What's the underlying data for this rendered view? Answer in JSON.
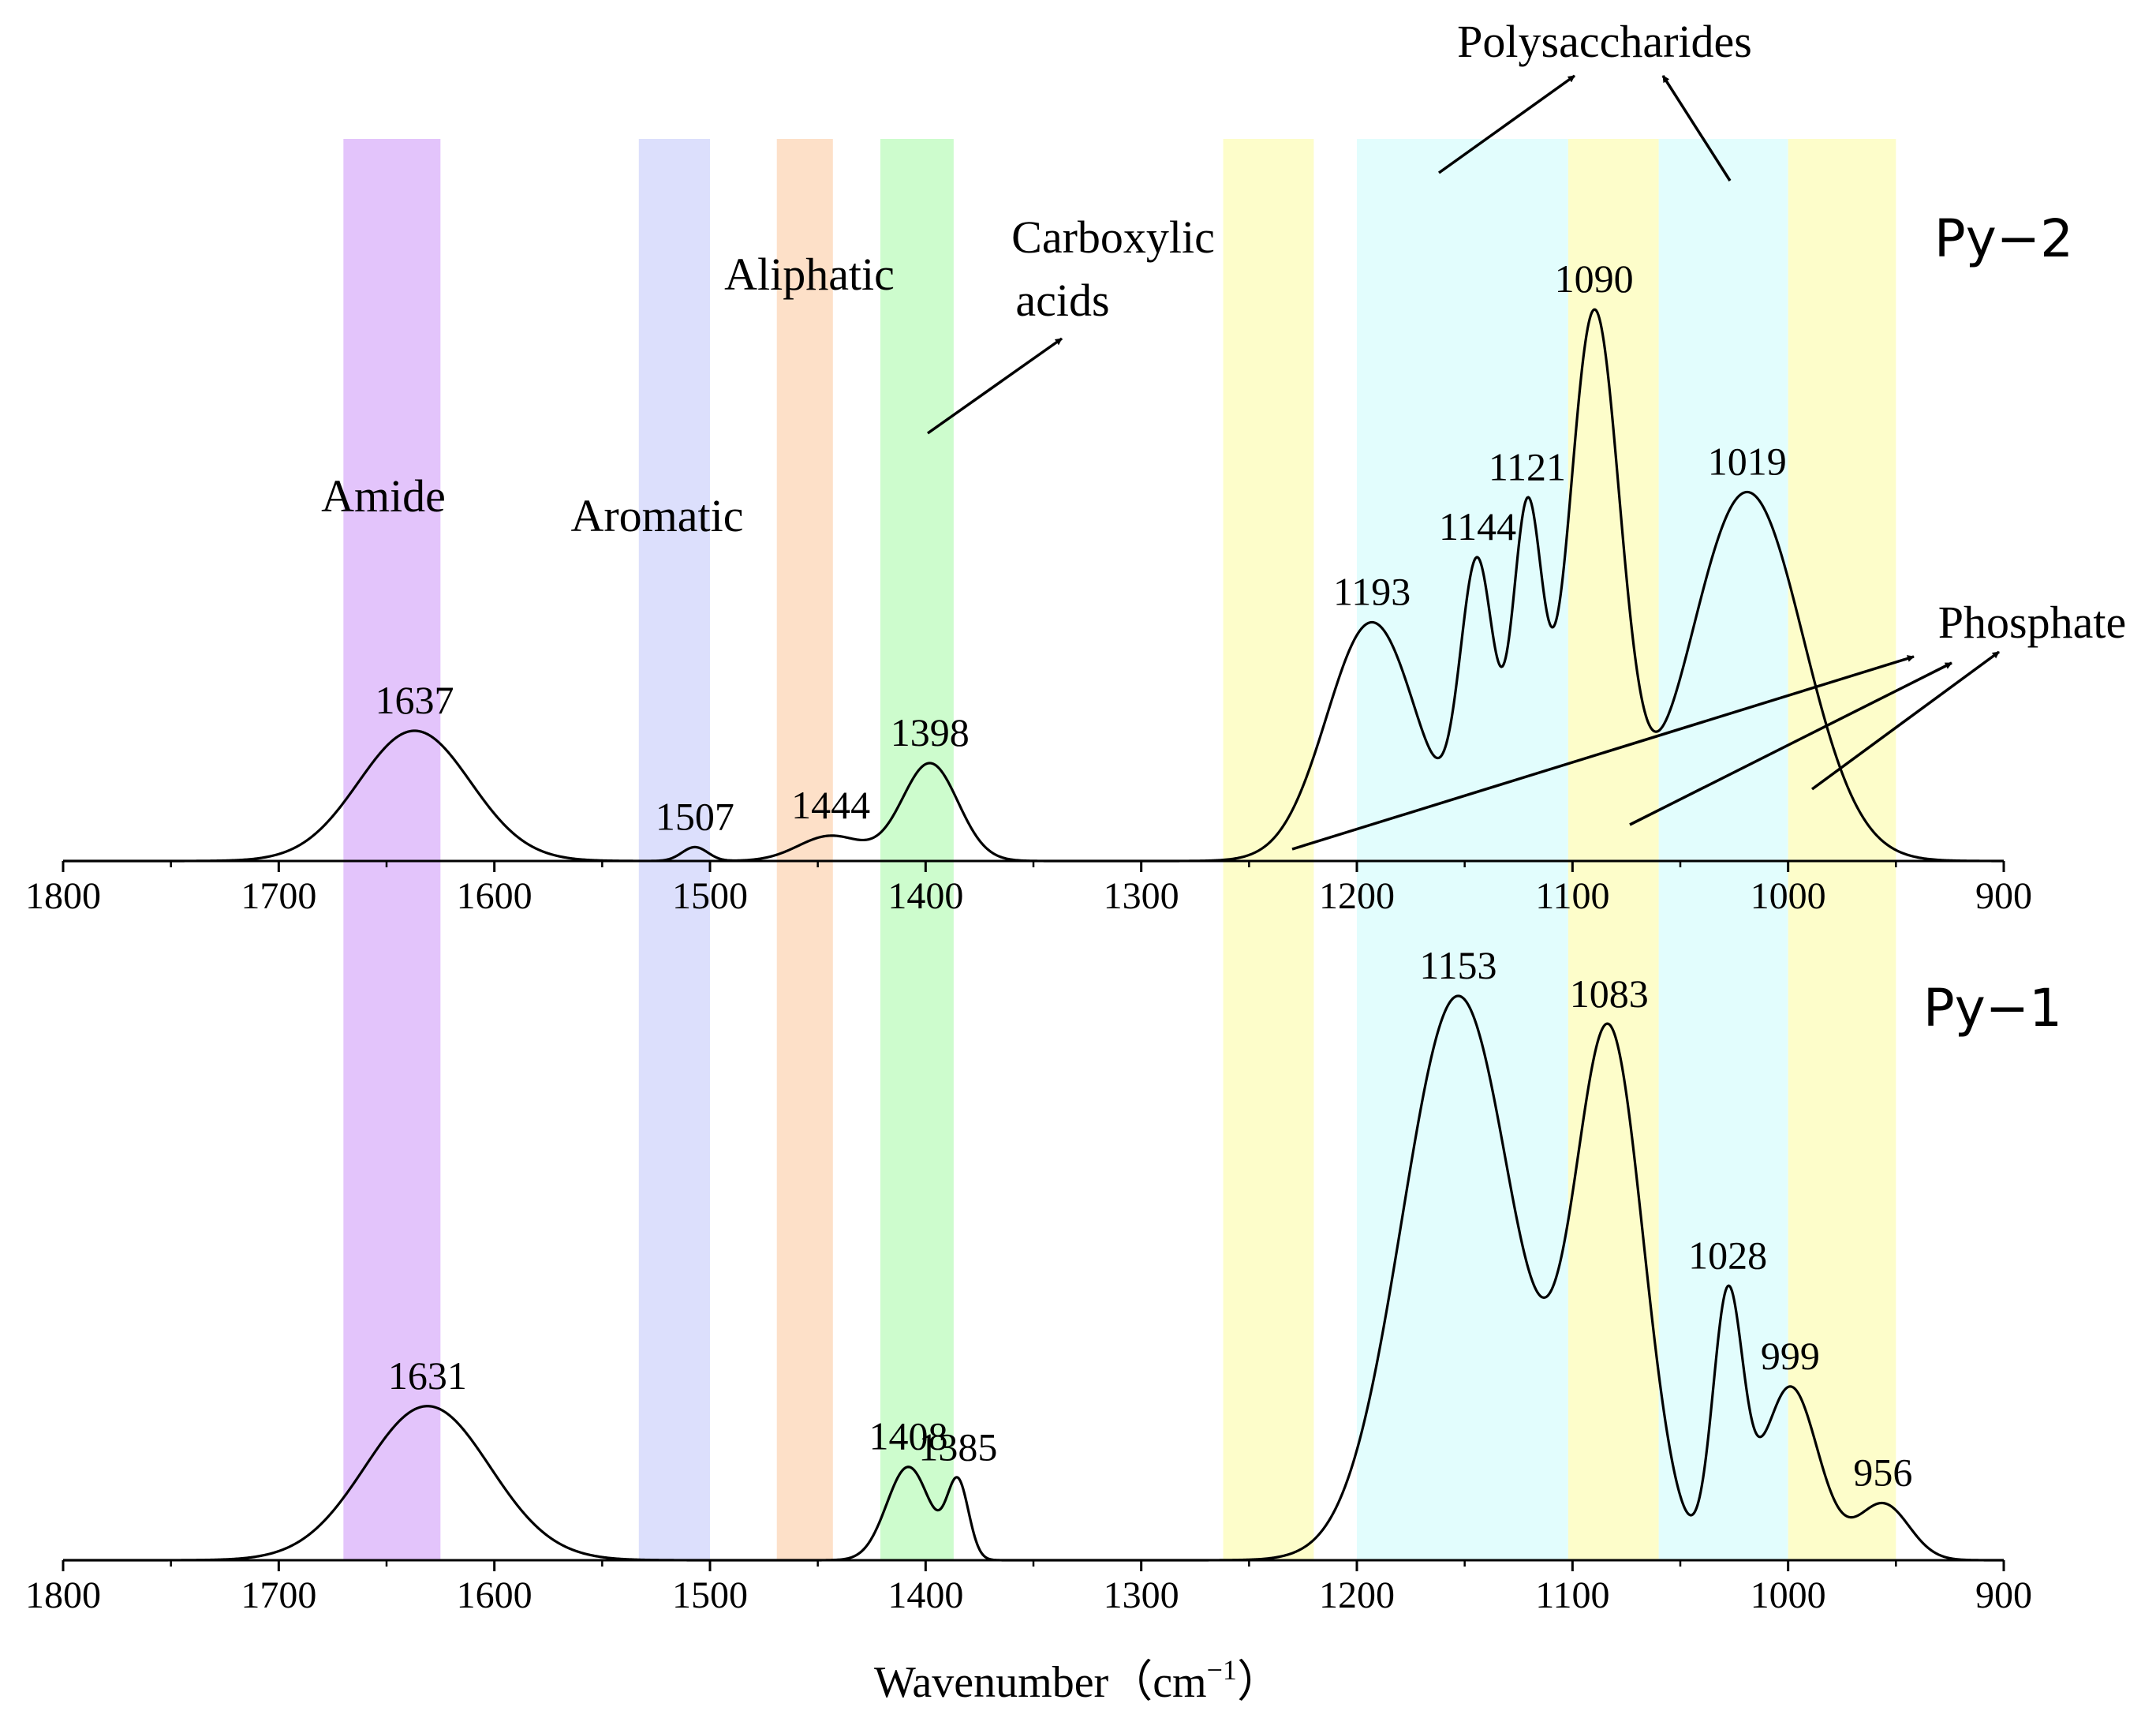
{
  "chart_data": {
    "type": "line",
    "title": "",
    "xlabel": "Wavenumber",
    "xlabel_unit": "（cm",
    "xlabel_sup": "−1",
    "xlabel_close": "）",
    "xlim": [
      1800,
      900
    ],
    "xticks": [
      "1800",
      "1700",
      "1600",
      "1500",
      "1400",
      "1300",
      "1200",
      "1100",
      "1000",
      "900"
    ],
    "xtick_values": [
      1800,
      1700,
      1600,
      1500,
      1400,
      1300,
      1200,
      1100,
      1000,
      900
    ],
    "grid": false,
    "panels": [
      {
        "name": "Py−2",
        "position": "top",
        "peaks": [
          {
            "center": 1637,
            "height": 0.3,
            "width": 26,
            "label": "1637"
          },
          {
            "center": 1507,
            "height": 0.032,
            "width": 6,
            "label": "1507"
          },
          {
            "center": 1444,
            "height": 0.058,
            "width": 15,
            "label": "1444"
          },
          {
            "center": 1398,
            "height": 0.225,
            "width": 13,
            "label": "1398"
          },
          {
            "center": 1193,
            "height": 0.55,
            "width": 21,
            "label": "1193"
          },
          {
            "center": 1144,
            "height": 0.66,
            "width": 8,
            "label": "1144"
          },
          {
            "center": 1121,
            "height": 0.78,
            "width": 7,
            "label": "1121"
          },
          {
            "center": 1090,
            "height": 1.25,
            "width": 12,
            "label": "1090"
          },
          {
            "center": 1019,
            "height": 0.85,
            "width": 26,
            "label": "1019"
          }
        ]
      },
      {
        "name": "Py−1",
        "position": "bottom",
        "peaks": [
          {
            "center": 1631,
            "height": 0.355,
            "width": 29,
            "label": "1631"
          },
          {
            "center": 1408,
            "height": 0.215,
            "width": 10,
            "label": "1408"
          },
          {
            "center": 1385,
            "height": 0.175,
            "width": 5,
            "label": "1385"
          },
          {
            "center": 1153,
            "height": 1.3,
            "width": 26,
            "label": "1153"
          },
          {
            "center": 1083,
            "height": 1.2,
            "width": 16,
            "label": "1083"
          },
          {
            "center": 1028,
            "height": 0.595,
            "width": 7,
            "label": "1028"
          },
          {
            "center": 999,
            "height": 0.4,
            "width": 13,
            "label": "999"
          },
          {
            "center": 956,
            "height": 0.13,
            "width": 12,
            "label": "956"
          }
        ]
      }
    ],
    "bands": [
      {
        "name": "amide",
        "from": 1670,
        "to": 1625,
        "color": "#e3c4fb"
      },
      {
        "name": "aromatic",
        "from": 1533,
        "to": 1500,
        "color": "#dcdffc"
      },
      {
        "name": "aliphatic",
        "from": 1469,
        "to": 1443,
        "color": "#fde0c8"
      },
      {
        "name": "carboxylic",
        "from": 1421,
        "to": 1387,
        "color": "#cdfccd"
      },
      {
        "name": "phosphate-1",
        "from": 1262,
        "to": 1220,
        "color": "#fdfdca"
      },
      {
        "name": "polysaccharide-1",
        "from": 1200,
        "to": 1102,
        "color": "#e2fdfd"
      },
      {
        "name": "phosphate-2",
        "from": 1102,
        "to": 1060,
        "color": "#fdfdca"
      },
      {
        "name": "polysaccharide-2",
        "from": 1060,
        "to": 1000,
        "color": "#e2fdfd"
      },
      {
        "name": "phosphate-3",
        "from": 1000,
        "to": 950,
        "color": "#fdfdca"
      }
    ],
    "annotations": {
      "amide": "Amide",
      "aromatic": "Aromatic",
      "aliphatic": "Aliphatic",
      "carboxylic_line1": "Carboxylic",
      "carboxylic_line2": "acids",
      "polysaccharides": "Polysaccharides",
      "phosphate": "Phosphate"
    }
  }
}
